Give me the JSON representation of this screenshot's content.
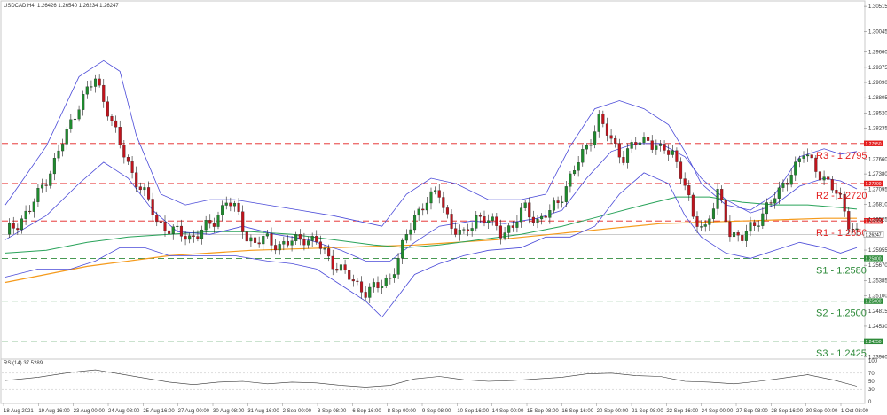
{
  "header": {
    "symbol": "USDCAD,H4",
    "ohlc": "1.26426 1.26540 1.26234 1.26247"
  },
  "chart_data": {
    "type": "candlestick",
    "ylim": [
      1.237,
      1.306
    ],
    "y_ticks": [
      {
        "value": 1.30515,
        "label": "1.30515"
      },
      {
        "value": 1.30045,
        "label": "1.30045"
      },
      {
        "value": 1.2966,
        "label": "1.29660"
      },
      {
        "value": 1.29375,
        "label": "1.29375"
      },
      {
        "value": 1.2909,
        "label": "1.29090"
      },
      {
        "value": 1.28805,
        "label": "1.28805"
      },
      {
        "value": 1.2852,
        "label": "1.28520"
      },
      {
        "value": 1.28235,
        "label": "1.28235"
      },
      {
        "value": 1.2766,
        "label": "1.27660"
      },
      {
        "value": 1.2738,
        "label": "1.27380"
      },
      {
        "value": 1.27095,
        "label": "1.27095"
      },
      {
        "value": 1.2681,
        "label": "1.26810"
      },
      {
        "value": 1.26525,
        "label": "1.26525"
      },
      {
        "value": 1.25955,
        "label": "1.25955"
      },
      {
        "value": 1.2567,
        "label": "1.25670"
      },
      {
        "value": 1.25385,
        "label": "1.25385"
      },
      {
        "value": 1.251,
        "label": "1.25100"
      },
      {
        "value": 1.24815,
        "label": "1.24815"
      },
      {
        "value": 1.2453,
        "label": "1.24530"
      },
      {
        "value": 1.2396,
        "label": "1.23960"
      }
    ],
    "x_labels": [
      "18 Aug 2021",
      "19 Aug 16:00",
      "23 Aug 00:00",
      "24 Aug 08:00",
      "25 Aug 16:00",
      "27 Aug 00:00",
      "30 Aug 08:00",
      "31 Aug 16:00",
      "2 Sep 00:00",
      "3 Sep 08:00",
      "6 Sep 16:00",
      "8 Sep 00:00",
      "9 Sep 08:00",
      "10 Sep 16:00",
      "14 Sep 00:00",
      "15 Sep 08:00",
      "16 Sep 16:00",
      "20 Sep 00:00",
      "21 Sep 08:00",
      "22 Sep 16:00",
      "24 Sep 00:00",
      "27 Sep 08:00",
      "28 Sep 16:00",
      "30 Sep 00:00",
      "1 Oct 08:00"
    ],
    "current_price": {
      "value": 1.26247,
      "label": "1.26247"
    },
    "levels": [
      {
        "name": "R3 - 1.2795",
        "price": 1.2795,
        "tag": "1.27950",
        "type": "resistance",
        "color": "#e41e1e"
      },
      {
        "name": "R2 - 1.2720",
        "price": 1.272,
        "tag": "1.27200",
        "type": "resistance",
        "color": "#e41e1e"
      },
      {
        "name": "R1 - 1.2650",
        "price": 1.265,
        "tag": "1.26500",
        "type": "resistance",
        "color": "#e41e1e"
      },
      {
        "name": "S1 - 1.2580",
        "price": 1.258,
        "tag": "1.25800",
        "type": "support",
        "color": "#2e8b3a"
      },
      {
        "name": "S2 - 1.2500",
        "price": 1.25,
        "tag": "1.25000",
        "type": "support",
        "color": "#2e8b3a"
      },
      {
        "name": "S3 - 1.2425",
        "price": 1.2425,
        "tag": "1.24250",
        "type": "support",
        "color": "#2e8b3a"
      }
    ],
    "price_path": [
      [
        0,
        1.2625
      ],
      [
        6,
        1.267
      ],
      [
        12,
        1.276
      ],
      [
        18,
        1.287
      ],
      [
        22,
        1.2915
      ],
      [
        25,
        1.286
      ],
      [
        28,
        1.279
      ],
      [
        31,
        1.274
      ],
      [
        34,
        1.27
      ],
      [
        37,
        1.265
      ],
      [
        41,
        1.263
      ],
      [
        45,
        1.262
      ],
      [
        48,
        1.263
      ],
      [
        51,
        1.265
      ],
      [
        54,
        1.269
      ],
      [
        57,
        1.266
      ],
      [
        59,
        1.262
      ],
      [
        61,
        1.261
      ],
      [
        64,
        1.2615
      ],
      [
        67,
        1.2605
      ],
      [
        70,
        1.261
      ],
      [
        73,
        1.262
      ],
      [
        76,
        1.261
      ],
      [
        79,
        1.258
      ],
      [
        82,
        1.256
      ],
      [
        85,
        1.2535
      ],
      [
        88,
        1.252
      ],
      [
        91,
        1.2525
      ],
      [
        94,
        1.2545
      ],
      [
        97,
        1.26
      ],
      [
        100,
        1.266
      ],
      [
        103,
        1.269
      ],
      [
        106,
        1.27
      ],
      [
        109,
        1.264
      ],
      [
        112,
        1.262
      ],
      [
        115,
        1.266
      ],
      [
        118,
        1.265
      ],
      [
        121,
        1.263
      ],
      [
        124,
        1.264
      ],
      [
        127,
        1.2675
      ],
      [
        130,
        1.265
      ],
      [
        133,
        1.2665
      ],
      [
        136,
        1.27
      ],
      [
        139,
        1.2745
      ],
      [
        142,
        1.279
      ],
      [
        145,
        1.284
      ],
      [
        148,
        1.28
      ],
      [
        151,
        1.277
      ],
      [
        154,
        1.2795
      ],
      [
        157,
        1.2805
      ],
      [
        160,
        1.278
      ],
      [
        163,
        1.278
      ],
      [
        166,
        1.272
      ],
      [
        168,
        1.265
      ],
      [
        171,
        1.264
      ],
      [
        174,
        1.27
      ],
      [
        177,
        1.263
      ],
      [
        180,
        1.262
      ],
      [
        183,
        1.264
      ],
      [
        186,
        1.268
      ],
      [
        189,
        1.27
      ],
      [
        192,
        1.2745
      ],
      [
        195,
        1.2775
      ],
      [
        198,
        1.275
      ],
      [
        201,
        1.272
      ],
      [
        204,
        1.269
      ],
      [
        206,
        1.265
      ],
      [
        208,
        1.2625
      ]
    ],
    "bollinger_upper": [
      [
        0,
        1.268
      ],
      [
        10,
        1.279
      ],
      [
        18,
        1.292
      ],
      [
        24,
        1.295
      ],
      [
        28,
        1.293
      ],
      [
        32,
        1.281
      ],
      [
        38,
        1.27
      ],
      [
        44,
        1.268
      ],
      [
        50,
        1.269
      ],
      [
        56,
        1.269
      ],
      [
        64,
        1.268
      ],
      [
        72,
        1.267
      ],
      [
        80,
        1.266
      ],
      [
        86,
        1.265
      ],
      [
        92,
        1.264
      ],
      [
        98,
        1.27
      ],
      [
        104,
        1.273
      ],
      [
        110,
        1.272
      ],
      [
        118,
        1.269
      ],
      [
        126,
        1.269
      ],
      [
        132,
        1.27
      ],
      [
        138,
        1.279
      ],
      [
        144,
        1.286
      ],
      [
        150,
        1.2875
      ],
      [
        156,
        1.286
      ],
      [
        162,
        1.283
      ],
      [
        166,
        1.278
      ],
      [
        170,
        1.272
      ],
      [
        176,
        1.268
      ],
      [
        182,
        1.267
      ],
      [
        188,
        1.27
      ],
      [
        194,
        1.277
      ],
      [
        200,
        1.2785
      ],
      [
        204,
        1.2775
      ],
      [
        208,
        1.278
      ]
    ],
    "bollinger_middle": [
      [
        0,
        1.2615
      ],
      [
        10,
        1.266
      ],
      [
        18,
        1.272
      ],
      [
        24,
        1.276
      ],
      [
        30,
        1.273
      ],
      [
        36,
        1.267
      ],
      [
        42,
        1.263
      ],
      [
        50,
        1.2625
      ],
      [
        58,
        1.264
      ],
      [
        66,
        1.2625
      ],
      [
        74,
        1.2615
      ],
      [
        82,
        1.2595
      ],
      [
        88,
        1.2575
      ],
      [
        94,
        1.2575
      ],
      [
        100,
        1.261
      ],
      [
        106,
        1.264
      ],
      [
        114,
        1.265
      ],
      [
        122,
        1.2645
      ],
      [
        130,
        1.2655
      ],
      [
        136,
        1.267
      ],
      [
        142,
        1.273
      ],
      [
        148,
        1.278
      ],
      [
        154,
        1.2795
      ],
      [
        160,
        1.2795
      ],
      [
        166,
        1.277
      ],
      [
        170,
        1.273
      ],
      [
        176,
        1.269
      ],
      [
        182,
        1.2665
      ],
      [
        188,
        1.268
      ],
      [
        194,
        1.2715
      ],
      [
        200,
        1.273
      ],
      [
        204,
        1.2725
      ],
      [
        208,
        1.271
      ]
    ],
    "bollinger_lower": [
      [
        0,
        1.2545
      ],
      [
        8,
        1.256
      ],
      [
        16,
        1.256
      ],
      [
        22,
        1.2575
      ],
      [
        28,
        1.26
      ],
      [
        34,
        1.26
      ],
      [
        40,
        1.2585
      ],
      [
        48,
        1.2585
      ],
      [
        56,
        1.2585
      ],
      [
        64,
        1.2575
      ],
      [
        70,
        1.257
      ],
      [
        76,
        1.256
      ],
      [
        82,
        1.253
      ],
      [
        88,
        1.25
      ],
      [
        92,
        1.247
      ],
      [
        96,
        1.251
      ],
      [
        100,
        1.255
      ],
      [
        106,
        1.257
      ],
      [
        112,
        1.2585
      ],
      [
        118,
        1.2595
      ],
      [
        126,
        1.26
      ],
      [
        132,
        1.262
      ],
      [
        138,
        1.262
      ],
      [
        144,
        1.264
      ],
      [
        150,
        1.27
      ],
      [
        156,
        1.274
      ],
      [
        162,
        1.272
      ],
      [
        166,
        1.266
      ],
      [
        170,
        1.262
      ],
      [
        176,
        1.259
      ],
      [
        182,
        1.258
      ],
      [
        188,
        1.2595
      ],
      [
        194,
        1.261
      ],
      [
        200,
        1.26
      ],
      [
        204,
        1.259
      ],
      [
        208,
        1.26
      ]
    ],
    "ma_green": [
      [
        0,
        1.259
      ],
      [
        10,
        1.2595
      ],
      [
        20,
        1.261
      ],
      [
        30,
        1.262
      ],
      [
        40,
        1.2625
      ],
      [
        50,
        1.263
      ],
      [
        60,
        1.263
      ],
      [
        70,
        1.2625
      ],
      [
        80,
        1.2615
      ],
      [
        90,
        1.2605
      ],
      [
        98,
        1.26
      ],
      [
        106,
        1.2605
      ],
      [
        116,
        1.2615
      ],
      [
        126,
        1.2625
      ],
      [
        136,
        1.264
      ],
      [
        146,
        1.266
      ],
      [
        156,
        1.268
      ],
      [
        164,
        1.2695
      ],
      [
        172,
        1.2695
      ],
      [
        180,
        1.2685
      ],
      [
        188,
        1.268
      ],
      [
        196,
        1.268
      ],
      [
        204,
        1.2675
      ],
      [
        208,
        1.2672
      ]
    ],
    "ma_orange": [
      [
        0,
        1.2535
      ],
      [
        20,
        1.2565
      ],
      [
        40,
        1.2585
      ],
      [
        60,
        1.2595
      ],
      [
        80,
        1.26
      ],
      [
        100,
        1.2605
      ],
      [
        120,
        1.2615
      ],
      [
        140,
        1.263
      ],
      [
        160,
        1.2645
      ],
      [
        180,
        1.265
      ],
      [
        200,
        1.2655
      ],
      [
        208,
        1.2655
      ]
    ],
    "rsi": {
      "label": "RSI(14) 37.5289",
      "ylim": [
        0,
        100
      ],
      "y_ticks": [
        {
          "value": 100,
          "label": "100"
        },
        {
          "value": 70,
          "label": "70"
        },
        {
          "value": 50,
          "label": "50"
        },
        {
          "value": 30,
          "label": "30"
        },
        {
          "value": 0,
          "label": "0"
        }
      ],
      "values": [
        [
          0,
          52
        ],
        [
          8,
          60
        ],
        [
          16,
          72
        ],
        [
          22,
          78
        ],
        [
          28,
          68
        ],
        [
          34,
          58
        ],
        [
          40,
          48
        ],
        [
          46,
          42
        ],
        [
          52,
          48
        ],
        [
          58,
          50
        ],
        [
          64,
          44
        ],
        [
          70,
          48
        ],
        [
          76,
          46
        ],
        [
          82,
          40
        ],
        [
          88,
          36
        ],
        [
          94,
          40
        ],
        [
          100,
          56
        ],
        [
          106,
          62
        ],
        [
          112,
          54
        ],
        [
          118,
          50
        ],
        [
          124,
          52
        ],
        [
          130,
          56
        ],
        [
          136,
          60
        ],
        [
          142,
          68
        ],
        [
          148,
          70
        ],
        [
          154,
          64
        ],
        [
          160,
          62
        ],
        [
          166,
          50
        ],
        [
          172,
          48
        ],
        [
          178,
          44
        ],
        [
          184,
          50
        ],
        [
          190,
          58
        ],
        [
          196,
          66
        ],
        [
          202,
          54
        ],
        [
          208,
          38
        ]
      ]
    }
  }
}
